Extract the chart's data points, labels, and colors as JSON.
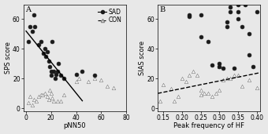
{
  "panel_A": {
    "label": "A",
    "xlabel": "pNN50",
    "ylabel": "SPS score",
    "xlim": [
      -2,
      80
    ],
    "ylim": [
      -2,
      70
    ],
    "xticks": [
      0,
      20,
      40,
      60,
      80
    ],
    "yticks": [
      0,
      20,
      40,
      60
    ],
    "sad_x": [
      2,
      3,
      5,
      6,
      7,
      10,
      12,
      14,
      15,
      16,
      17,
      18,
      19,
      20,
      20,
      21,
      22,
      23,
      24,
      25,
      26,
      28,
      30,
      40,
      45,
      55
    ],
    "sad_y": [
      45,
      55,
      52,
      63,
      55,
      43,
      45,
      37,
      40,
      35,
      38,
      32,
      28,
      25,
      22,
      45,
      25,
      20,
      23,
      25,
      30,
      22,
      20,
      23,
      25,
      22
    ],
    "con_x": [
      2,
      3,
      5,
      6,
      8,
      10,
      12,
      13,
      15,
      17,
      18,
      19,
      20,
      21,
      22,
      25,
      28,
      30,
      40,
      42,
      50,
      55,
      60,
      65,
      70
    ],
    "con_y": [
      4,
      8,
      2,
      6,
      5,
      8,
      9,
      9,
      10,
      8,
      6,
      12,
      10,
      7,
      5,
      5,
      5,
      9,
      18,
      20,
      18,
      20,
      19,
      15,
      14
    ],
    "line_x": [
      0,
      45
    ],
    "line_y": [
      52,
      5
    ],
    "line_style": "solid"
  },
  "panel_B": {
    "label": "B",
    "xlabel": "Peak frequency of HF",
    "ylabel": "SIAS score",
    "xlim": [
      0.135,
      0.41
    ],
    "ylim": [
      -2,
      70
    ],
    "xticks": [
      0.15,
      0.2,
      0.25,
      0.3,
      0.35,
      0.4
    ],
    "yticks": [
      0,
      20,
      40,
      60
    ],
    "sad_x": [
      0.22,
      0.22,
      0.25,
      0.25,
      0.27,
      0.28,
      0.3,
      0.3,
      0.31,
      0.32,
      0.32,
      0.33,
      0.33,
      0.34,
      0.35,
      0.35,
      0.35,
      0.36,
      0.37,
      0.38,
      0.38,
      0.39,
      0.4
    ],
    "sad_y": [
      63,
      62,
      48,
      63,
      45,
      29,
      28,
      30,
      27,
      55,
      58,
      65,
      68,
      27,
      65,
      70,
      60,
      55,
      70,
      50,
      36,
      28,
      65
    ],
    "con_x": [
      0.14,
      0.15,
      0.17,
      0.18,
      0.19,
      0.2,
      0.21,
      0.22,
      0.23,
      0.24,
      0.25,
      0.25,
      0.26,
      0.27,
      0.28,
      0.29,
      0.3,
      0.3,
      0.31,
      0.32,
      0.33,
      0.34,
      0.35,
      0.36,
      0.38,
      0.4
    ],
    "con_y": [
      5,
      16,
      13,
      5,
      8,
      20,
      18,
      22,
      25,
      22,
      12,
      9,
      10,
      10,
      8,
      10,
      12,
      28,
      19,
      20,
      20,
      22,
      22,
      15,
      19,
      14
    ],
    "line_x": [
      0.135,
      0.41
    ],
    "line_y": [
      10,
      24
    ],
    "line_style": "dashed"
  },
  "legend_sad_label": "SAD",
  "legend_con_label": "CON",
  "bg_color": "#e8e8e8",
  "sad_color": "#1a1a1a",
  "con_color": "#888888",
  "marker_size_sad": 12,
  "marker_size_con": 10,
  "line_width": 1.0,
  "title_fontsize": 7,
  "label_fontsize": 6,
  "tick_fontsize": 5.5,
  "legend_fontsize": 5.5
}
